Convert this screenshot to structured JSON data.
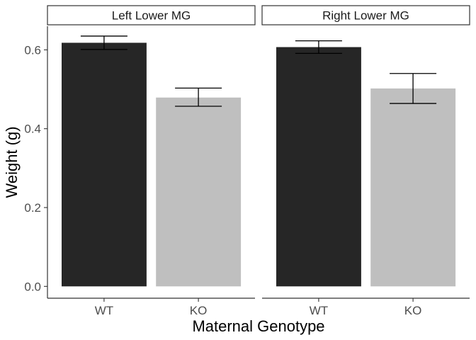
{
  "chart_data": {
    "type": "bar",
    "xlabel": "Maternal Genotype",
    "ylabel": "Weight (g)",
    "ylim": [
      -0.03,
      0.66
    ],
    "yticks": [
      0.0,
      0.2,
      0.4,
      0.6
    ],
    "ytick_labels": [
      "0.0",
      "0.2",
      "0.4",
      "0.6"
    ],
    "categories": [
      "WT",
      "KO"
    ],
    "category_colors": {
      "WT": "#262626",
      "KO": "#bfbfbf"
    },
    "grid": false,
    "legend": "none",
    "panels": [
      {
        "title": "Left Lower MG",
        "values": [
          0.618,
          0.479
        ],
        "error_low": [
          0.601,
          0.457
        ],
        "error_high": [
          0.635,
          0.503
        ]
      },
      {
        "title": "Right Lower MG",
        "values": [
          0.607,
          0.502
        ],
        "error_low": [
          0.591,
          0.464
        ],
        "error_high": [
          0.623,
          0.54
        ]
      }
    ]
  }
}
